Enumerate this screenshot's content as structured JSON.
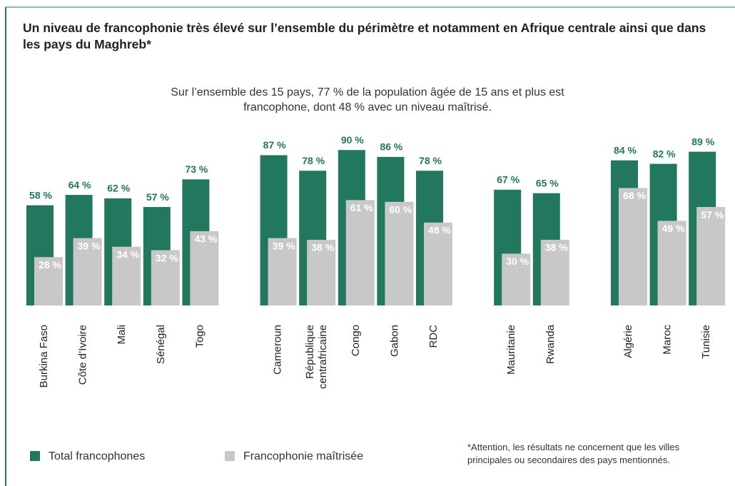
{
  "chart_data": {
    "type": "bar",
    "title": "Un niveau de francophonie très élevé sur l’ensemble du périmètre et notamment en Afrique centrale ainsi que dans les pays du Maghreb*",
    "subtitle": "Sur l’ensemble des 15 pays, 77 % de la population âgée de 15 ans et plus est francophone, dont 48 % avec un niveau maîtrisé.",
    "note": "*Attention, les résultats ne concernent que les villes principales ou secondaires des pays mentionnés.",
    "categories": [
      "Burkina Faso",
      "Côte d’Ivoire",
      "Mali",
      "Sénégal",
      "Togo",
      "Cameroun",
      "République centrafricaine",
      "Congo",
      "Gabon",
      "RDC",
      "Mauritanie",
      "Rwanda",
      "Algérie",
      "Maroc",
      "Tunisie"
    ],
    "ylim": [
      0,
      100
    ],
    "series": [
      {
        "name": "Total francophones",
        "color": "#22775f",
        "values": [
          58,
          64,
          62,
          57,
          73,
          87,
          78,
          90,
          86,
          78,
          67,
          65,
          84,
          82,
          89
        ],
        "value_labels": [
          "58 %",
          "64 %",
          "62 %",
          "57 %",
          "73 %",
          "87 %",
          "78 %",
          "90 %",
          "86 %",
          "78 %",
          "67 %",
          "65 %",
          "84 %",
          "82 %",
          "89 %"
        ]
      },
      {
        "name": "Francophonie maîtrisée",
        "color": "#c9c8c9",
        "values": [
          28,
          39,
          34,
          32,
          43,
          39,
          38,
          61,
          60,
          48,
          30,
          38,
          68,
          49,
          57
        ],
        "value_labels": [
          "28 %",
          "39 %",
          "34 %",
          "32 %",
          "43 %",
          "39 %",
          "38 %",
          "61 %",
          "60 %",
          "48 %",
          "30 %",
          "38 %",
          "68 %",
          "49 %",
          "57 %"
        ]
      }
    ]
  }
}
